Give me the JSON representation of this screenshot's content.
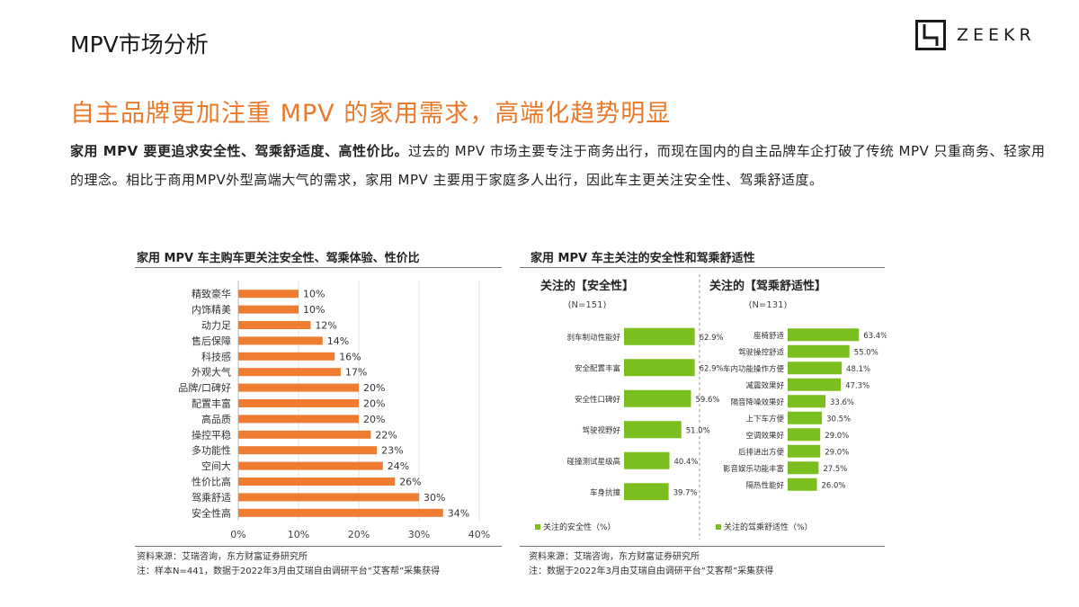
{
  "header": {
    "title": "MPV市场分析",
    "logo_text": "ZEEKR"
  },
  "headline": "自主品牌更加注重 MPV 的家用需求，高端化趋势明显",
  "body": {
    "lead": "家用 MPV 要更追求安全性、驾乘舒适度、高性价比。",
    "text": "过去的 MPV 市场主要专注于商务出行，而现在国内的自主品牌车企打破了传统 MPV 只重商务、轻家用的理念。相比于商用MPV外型高端大气的需求，家用 MPV 主要用于家庭多人出行，因此车主更关注安全性、驾乘舒适度。"
  },
  "colors": {
    "accent": "#ea7a2b",
    "bar_orange": "#ee7d31",
    "bar_green": "#7bbf1e"
  },
  "chart_data": [
    {
      "type": "bar",
      "orientation": "horizontal",
      "title": "家用 MPV 车主购车更关注安全性、驾乘体验、性价比",
      "categories": [
        "精致豪华",
        "内饰精美",
        "动力足",
        "售后保障",
        "科技感",
        "外观大气",
        "品牌/口碑好",
        "配置丰富",
        "高品质",
        "操控平稳",
        "多功能性",
        "空间大",
        "性价比高",
        "驾乘舒适",
        "安全性高"
      ],
      "values": [
        10,
        10,
        12,
        14,
        16,
        17,
        20,
        20,
        20,
        22,
        23,
        24,
        26,
        30,
        34
      ],
      "value_labels": [
        "10%",
        "10%",
        "12%",
        "14%",
        "16%",
        "17%",
        "20%",
        "20%",
        "20%",
        "22%",
        "23%",
        "24%",
        "26%",
        "30%",
        "34%"
      ],
      "xlim": [
        0,
        40
      ],
      "xticks": [
        "0%",
        "10%",
        "20%",
        "30%",
        "40%"
      ],
      "grid": true,
      "source": "资料来源：艾瑞咨询，东方财富证券研究所",
      "note": "注：样本N=441，数据于2022年3月由艾瑞自由调研平台“艾客帮”采集获得"
    },
    {
      "type": "bar",
      "orientation": "horizontal",
      "title": "家用 MPV 车主关注的安全性和驾乘舒适性",
      "panels": [
        {
          "heading": "关注的【安全性】",
          "sample": "(N=151)",
          "categories": [
            "刹车制动性能好",
            "安全配置丰富",
            "安全性口碑好",
            "驾驶视野好",
            "碰撞测试星级高",
            "车身抗撞"
          ],
          "values": [
            62.9,
            62.9,
            59.6,
            51.0,
            40.4,
            39.7
          ],
          "value_labels": [
            "62.9%",
            "62.9%",
            "59.6%",
            "51.0%",
            "40.4%",
            "39.7%"
          ],
          "legend": "关注的安全性（%）"
        },
        {
          "heading": "关注的【驾乘舒适性】",
          "sample": "(N=131)",
          "categories": [
            "座椅舒适",
            "驾驶操控舒适",
            "车内功能操作方便",
            "减震效果好",
            "隔音降噪效果好",
            "上下车方便",
            "空调效果好",
            "后排进出方便",
            "影音娱乐功能丰富",
            "隔热性能好"
          ],
          "values": [
            63.4,
            55.0,
            48.1,
            47.3,
            33.6,
            30.5,
            29.0,
            29.0,
            27.5,
            26.0
          ],
          "value_labels": [
            "63.4%",
            "55.0%",
            "48.1%",
            "47.3%",
            "33.6%",
            "30.5%",
            "29.0%",
            "29.0%",
            "27.5%",
            "26.0%"
          ],
          "legend": "关注的驾乘舒适性（%）"
        }
      ],
      "source": "资料来源：艾瑞咨询，东方财富证券研究所",
      "note": "注：数据于2022年3月由艾瑞自由调研平台“艾客帮”采集获得"
    }
  ]
}
